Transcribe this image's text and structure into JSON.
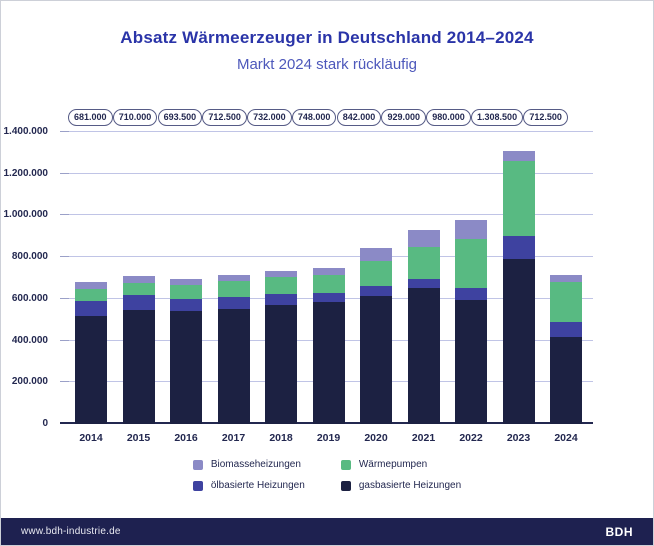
{
  "header": {
    "title": "Absatz Wärmeerzeuger in Deutschland 2014–2024",
    "subtitle": "Markt 2024 stark rückläufig"
  },
  "chart_data": {
    "type": "bar",
    "stacked": true,
    "title": "Absatz Wärmeerzeuger in Deutschland 2014–2024",
    "subtitle": "Markt 2024 stark rückläufig",
    "categories": [
      "2014",
      "2015",
      "2016",
      "2017",
      "2018",
      "2019",
      "2020",
      "2021",
      "2022",
      "2023",
      "2024"
    ],
    "series": [
      {
        "name": "gasbasierte Heizungen",
        "color": "#1c2142",
        "values": [
          517500,
          546500,
          540500,
          552500,
          572500,
          586000,
          614000,
          653000,
          597000,
          790500,
          417500
        ]
      },
      {
        "name": "ölbasierte Heizungen",
        "color": "#3e42a0",
        "values": [
          73500,
          72500,
          58500,
          55500,
          49500,
          44500,
          46500,
          43500,
          55500,
          112500,
          69500
        ]
      },
      {
        "name": "Wärmepumpen",
        "color": "#58ba82",
        "values": [
          58000,
          57000,
          66500,
          78000,
          84000,
          86000,
          120000,
          154000,
          236000,
          356000,
          193000
        ]
      },
      {
        "name": "Biomasseheizungen",
        "color": "#8b8ac6",
        "values": [
          32000,
          34000,
          28000,
          26500,
          26000,
          31500,
          61500,
          78500,
          91500,
          49500,
          32500
        ]
      }
    ],
    "totals_values": [
      681000,
      710000,
      693500,
      712500,
      732000,
      748000,
      842000,
      929000,
      980000,
      1308500,
      712500
    ],
    "totals_labels": [
      "681.000",
      "710.000",
      "693.500",
      "712.500",
      "732.000",
      "748.000",
      "842.000",
      "929.000",
      "980.000",
      "1.308.500",
      "712.500"
    ],
    "ylim": [
      0,
      1400000
    ],
    "y_tick_step": 200000,
    "y_tick_labels": [
      "0",
      "200.000",
      "400.000",
      "600.000",
      "800.000",
      "1.000.000",
      "1.200.000",
      "1.400.000"
    ],
    "grid": true,
    "legend_position": "bottom"
  },
  "legend": {
    "items": [
      {
        "label": "Biomasseheizungen",
        "color": "#8b8ac6"
      },
      {
        "label": "Wärmepumpen",
        "color": "#58ba82"
      },
      {
        "label": "ölbasierte Heizungen",
        "color": "#3e42a0"
      },
      {
        "label": "gasbasierte Heizungen",
        "color": "#1c2142"
      }
    ]
  },
  "footer": {
    "url": "www.bdh-industrie.de",
    "brand": "BDH"
  }
}
